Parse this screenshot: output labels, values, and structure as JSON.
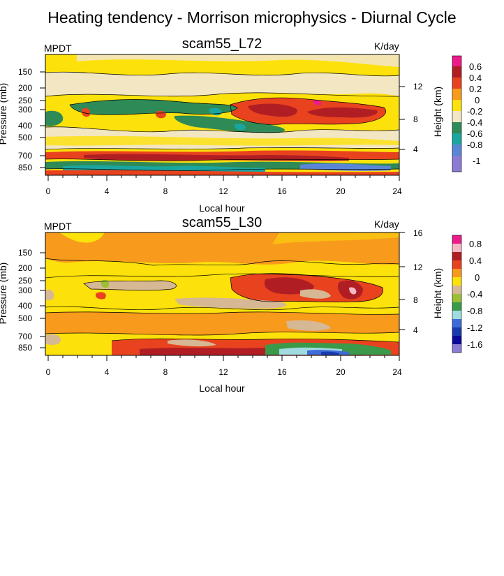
{
  "title": "Heating tendency - Morrison microphysics - Diurnal Cycle",
  "chart_data": [
    {
      "type": "heatmap",
      "title": "scam55_L72",
      "left_label": "MPDT",
      "right_label": "K/day",
      "xlabel": "Local hour",
      "ylabel": "Pressure (mb)",
      "y2label": "Height (km)",
      "x_ticks": [
        "0",
        "4",
        "8",
        "12",
        "16",
        "20",
        "24"
      ],
      "xlim": [
        0,
        24
      ],
      "y_ticks": [
        "150",
        "200",
        "250",
        "300",
        "400",
        "500",
        "700",
        "850"
      ],
      "y2_ticks": [
        "12",
        "8",
        "4"
      ],
      "legend_labels": [
        "0.6",
        "0.4",
        "0.2",
        "0",
        "-0.2",
        "-0.4",
        "-0.6",
        "-0.8",
        "-1"
      ],
      "legend_colors": [
        "#ee1a8c",
        "#b01e24",
        "#e8431e",
        "#f89a1c",
        "#fde10a",
        "#f3e6c2",
        "#2e8a57",
        "#1aa6a0",
        "#5a86d8",
        "#8b7bd4"
      ],
      "background_value_color": "#f3e6c2",
      "features": [
        {
          "region": "upper troposphere 150-200 mb",
          "value": "0 to 0.2",
          "color": "#fde10a"
        },
        {
          "region": "250-400 mb, hours 14-22",
          "value": "0.4 to 0.6",
          "color": "#b01e24"
        },
        {
          "region": "250-400 mb, hours 0-16",
          "value": "-0.2 to -0.4",
          "color": "#2e8a57"
        },
        {
          "region": "700-850 mb, all hours",
          "value": "0.2 to 0.4",
          "color": "#e8431e"
        }
      ]
    },
    {
      "type": "heatmap",
      "title": "scam55_L30",
      "left_label": "MPDT",
      "right_label": "K/day",
      "xlabel": "Local hour",
      "ylabel": "Pressure (mb)",
      "y2label": "Height (km)",
      "x_ticks": [
        "0",
        "4",
        "8",
        "12",
        "16",
        "20",
        "24"
      ],
      "xlim": [
        0,
        24
      ],
      "y_ticks": [
        "150",
        "200",
        "250",
        "300",
        "400",
        "500",
        "700",
        "850"
      ],
      "y2_ticks": [
        "16",
        "12",
        "8",
        "4"
      ],
      "legend_labels": [
        "0.8",
        "0.4",
        "0",
        "-0.4",
        "-0.8",
        "-1.2",
        "-1.6"
      ],
      "legend_colors": [
        "#ee1a8c",
        "#f6b8c4",
        "#b01e24",
        "#e8431e",
        "#f89a1c",
        "#fde10a",
        "#d6b894",
        "#9bbf35",
        "#3a9a4a",
        "#9fdbe0",
        "#3d6cd8",
        "#1a3ab0",
        "#0a0a9a",
        "#8b7bd4"
      ],
      "background_value_color": "#fde10a",
      "features": [
        {
          "region": "upper troposphere 100-300 mb",
          "value": "0 to 0.2",
          "color": "#f89a1c"
        },
        {
          "region": "300-400 mb, hours 14-22",
          "value": "0.4 to 0.8",
          "color": "#b01e24"
        },
        {
          "region": "300-400 mb, hours 2-12",
          "value": "-0.2 to -0.4",
          "color": "#d6b894"
        },
        {
          "region": "700-900 mb, hours 6-24",
          "value": "0.2 to 0.4",
          "color": "#e8431e"
        }
      ]
    }
  ]
}
